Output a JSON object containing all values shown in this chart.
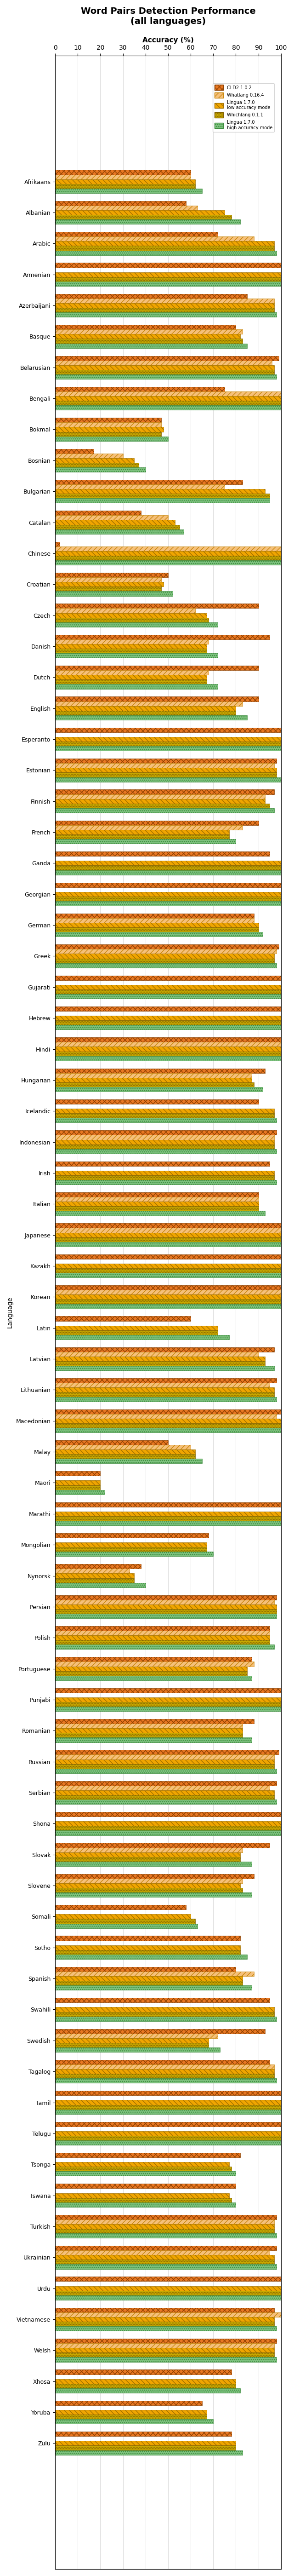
{
  "title": "Word Pairs Detection Performance\n(all languages)",
  "xlabel": "Accuracy (%)",
  "ylabel": "Language",
  "xlim": [
    0,
    100
  ],
  "xticks": [
    0,
    10,
    20,
    30,
    40,
    50,
    60,
    70,
    80,
    90,
    100
  ],
  "languages": [
    "Afrikaans",
    "Albanian",
    "Arabic",
    "Armenian",
    "Azerbaijani",
    "Basque",
    "Belarusian",
    "Bengali",
    "Bokmal",
    "Bosnian",
    "Bulgarian",
    "Catalan",
    "Chinese",
    "Croatian",
    "Czech",
    "Danish",
    "Dutch",
    "English",
    "Esperanto",
    "Estonian",
    "Finnish",
    "French",
    "Ganda",
    "Georgian",
    "German",
    "Greek",
    "Gujarati",
    "Hebrew",
    "Hindi",
    "Hungarian",
    "Icelandic",
    "Indonesian",
    "Irish",
    "Italian",
    "Japanese",
    "Kazakh",
    "Korean",
    "Latin",
    "Latvian",
    "Lithuanian",
    "Macedonian",
    "Malay",
    "Maori",
    "Marathi",
    "Mongolian",
    "Nynorsk",
    "Persian",
    "Polish",
    "Portuguese",
    "Punjabi",
    "Romanian",
    "Russian",
    "Serbian",
    "Shona",
    "Slovak",
    "Slovene",
    "Somali",
    "Sotho",
    "Spanish",
    "Swahili",
    "Swedish",
    "Tagalog",
    "Tamil",
    "Telugu",
    "Tsonga",
    "Tswana",
    "Turkish",
    "Ukrainian",
    "Urdu",
    "Vietnamese",
    "Welsh",
    "Xhosa",
    "Yoruba",
    "Zulu"
  ],
  "series": {
    "CLD2 1.0.2": {
      "color": "#E87722",
      "hatch": "xxx",
      "values": [
        60,
        58,
        72,
        100,
        85,
        80,
        99,
        75,
        47,
        17,
        83,
        38,
        2,
        50,
        90,
        95,
        90,
        90,
        100,
        98,
        97,
        90,
        95,
        100,
        88,
        99,
        100,
        100,
        100,
        93,
        90,
        98,
        95,
        90,
        100,
        100,
        100,
        60,
        97,
        98,
        100,
        50,
        20,
        100,
        68,
        38,
        98,
        95,
        87,
        100,
        88,
        99,
        98,
        100,
        95,
        88,
        58,
        82,
        80,
        95,
        93,
        95,
        100,
        100,
        82,
        80,
        98,
        98,
        100,
        97,
        98,
        78,
        65,
        78
      ]
    },
    "Whatlang 0.16.4": {
      "color": "#F5C07A",
      "hatch": "///",
      "values": [
        60,
        63,
        88,
        0,
        97,
        83,
        96,
        100,
        47,
        30,
        75,
        50,
        100,
        47,
        62,
        68,
        68,
        83,
        0,
        97,
        93,
        83,
        0,
        0,
        88,
        98,
        0,
        0,
        100,
        87,
        0,
        97,
        0,
        90,
        100,
        0,
        100,
        0,
        90,
        95,
        98,
        60,
        0,
        0,
        0,
        33,
        97,
        95,
        88,
        0,
        83,
        97,
        95,
        0,
        83,
        83,
        0,
        0,
        88,
        0,
        72,
        97,
        0,
        0,
        0,
        0,
        97,
        95,
        0,
        100,
        97,
        0,
        0,
        0
      ]
    },
    "Lingua 1.7.0\nlow accuracy mode": {
      "color": "#F0A500",
      "hatch": "\\\\\\",
      "values": [
        62,
        75,
        97,
        100,
        97,
        82,
        97,
        100,
        48,
        35,
        93,
        53,
        100,
        48,
        67,
        67,
        67,
        80,
        100,
        98,
        93,
        77,
        100,
        100,
        90,
        97,
        100,
        100,
        100,
        87,
        97,
        97,
        97,
        90,
        100,
        100,
        100,
        72,
        93,
        97,
        100,
        62,
        20,
        100,
        67,
        35,
        98,
        95,
        85,
        100,
        83,
        97,
        97,
        100,
        82,
        82,
        60,
        82,
        83,
        97,
        68,
        97,
        100,
        100,
        77,
        77,
        97,
        97,
        100,
        97,
        97,
        80,
        67,
        80
      ]
    },
    "Whichlang 0.1.1": {
      "color": "#C8A800",
      "hatch": "....",
      "values": [
        62,
        78,
        97,
        100,
        97,
        83,
        97,
        100,
        47,
        37,
        95,
        55,
        100,
        47,
        68,
        67,
        67,
        80,
        100,
        98,
        95,
        77,
        100,
        100,
        90,
        97,
        100,
        100,
        100,
        88,
        97,
        97,
        97,
        90,
        100,
        100,
        100,
        72,
        93,
        97,
        100,
        62,
        20,
        100,
        67,
        35,
        98,
        95,
        85,
        100,
        83,
        97,
        97,
        100,
        82,
        83,
        62,
        82,
        83,
        97,
        68,
        97,
        100,
        100,
        78,
        78,
        97,
        97,
        100,
        97,
        97,
        80,
        67,
        80
      ]
    },
    "Lingua 1.7.0\nhigh accuracy mode": {
      "color": "#7DC17E",
      "hatch": "....",
      "values": [
        65,
        82,
        98,
        100,
        98,
        85,
        98,
        100,
        50,
        40,
        95,
        57,
        100,
        52,
        72,
        72,
        72,
        85,
        100,
        100,
        97,
        80,
        100,
        100,
        92,
        98,
        100,
        100,
        100,
        92,
        98,
        98,
        98,
        93,
        100,
        100,
        100,
        77,
        97,
        98,
        100,
        65,
        22,
        100,
        70,
        40,
        98,
        97,
        87,
        100,
        87,
        98,
        98,
        100,
        87,
        87,
        63,
        85,
        87,
        98,
        73,
        98,
        100,
        100,
        80,
        80,
        98,
        98,
        100,
        98,
        98,
        82,
        70,
        83
      ]
    }
  },
  "background_color": "#FFFFFF",
  "grid_color": "#CCCCCC"
}
